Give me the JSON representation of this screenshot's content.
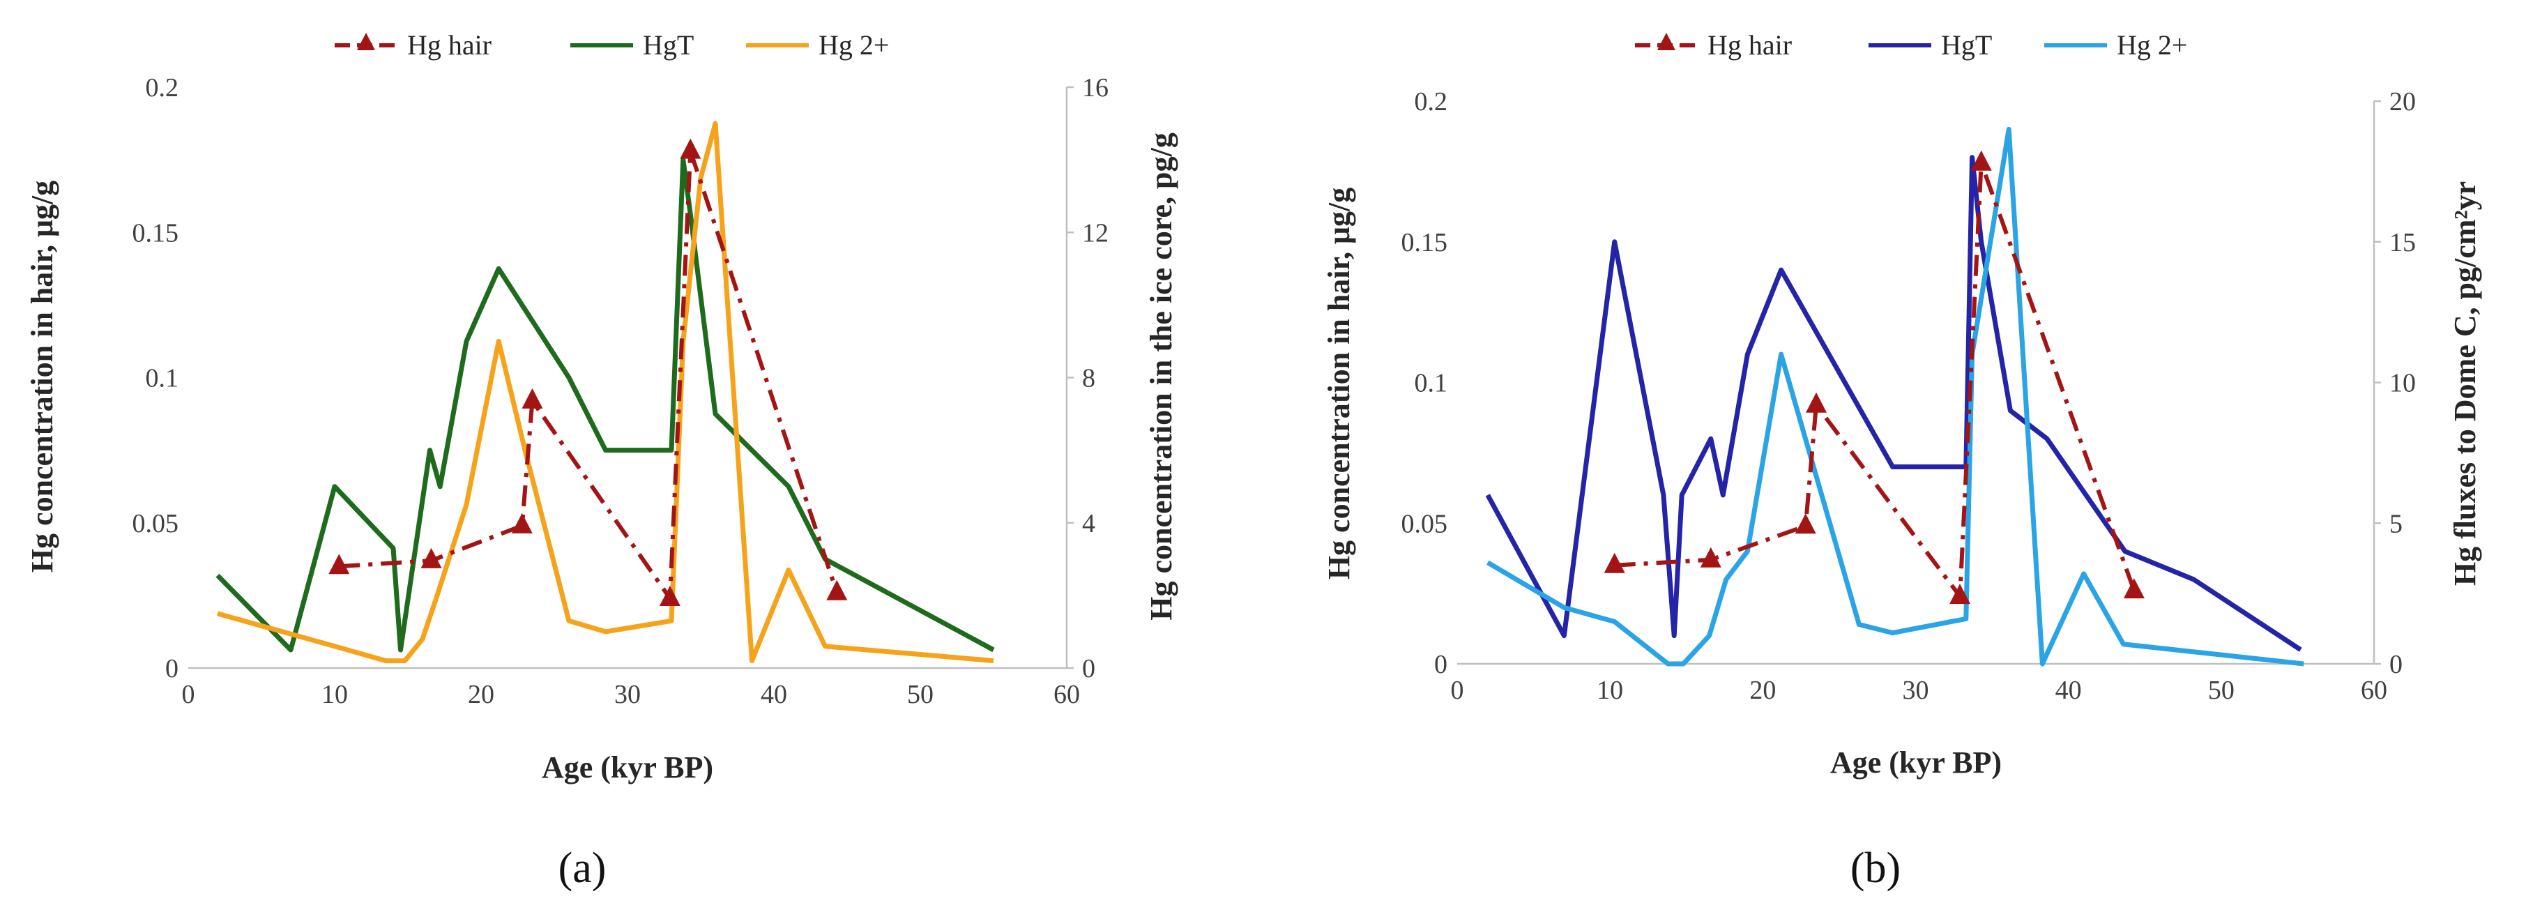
{
  "chart_data": [
    {
      "type": "line",
      "panel_label": "(a)",
      "xlabel": "Age (kyr BP)",
      "ylabel": "Hg concentration in hair, μg/g",
      "y2label": "Hg concentration in the ice core, pg/g",
      "xlim": [
        0,
        60
      ],
      "ylim": [
        0,
        0.2
      ],
      "y2lim": [
        0,
        16
      ],
      "xticks": [
        "0",
        "10",
        "20",
        "30",
        "40",
        "50",
        "60"
      ],
      "yticks": [
        "0",
        "0.05",
        "0.1",
        "0.15",
        "0.2"
      ],
      "y2ticks": [
        "0",
        "4",
        "8",
        "12",
        "16"
      ],
      "legend_position": "top",
      "series": [
        {
          "name": "Hg hair",
          "axis": "left",
          "color": "#a31515",
          "style": "dash-dot",
          "marker": "triangle",
          "x": [
            10.3,
            16.6,
            22.8,
            23.5,
            32.9,
            34.3,
            44.3
          ],
          "y": [
            0.035,
            0.037,
            0.049,
            0.092,
            0.024,
            0.178,
            0.026
          ]
        },
        {
          "name": "HgT",
          "axis": "right",
          "color": "#1e6b1e",
          "style": "solid",
          "x": [
            2,
            7,
            10,
            14,
            14.5,
            16.5,
            17.2,
            19,
            21.2,
            26,
            28.5,
            33,
            33.8,
            34.3,
            36,
            41,
            43.5,
            55
          ],
          "y": [
            2.55,
            0.5,
            5,
            3.3,
            0.5,
            6,
            5,
            9,
            11,
            8,
            6,
            6,
            14,
            12.5,
            7,
            5,
            3,
            0.5
          ]
        },
        {
          "name": "Hg 2+",
          "axis": "right",
          "color": "#f5a31a",
          "style": "solid",
          "x": [
            2,
            10,
            13.5,
            14.8,
            16,
            17,
            19,
            21.2,
            23,
            26,
            28.5,
            33,
            33.8,
            35,
            36,
            38.5,
            41,
            43.5,
            55
          ],
          "y": [
            1.5,
            0.6,
            0.2,
            0.2,
            0.8,
            2,
            4.5,
            9,
            6,
            1.3,
            1,
            1.3,
            9,
            13.5,
            15,
            0.2,
            2.7,
            0.6,
            0.2
          ]
        }
      ]
    },
    {
      "type": "line",
      "panel_label": "(b)",
      "xlabel": "Age (kyr BP)",
      "ylabel": "Hg concentration in hair, μg/g",
      "y2label": "Hg fluxes to Dome C, pg/cm²yr",
      "xlim": [
        0,
        60
      ],
      "ylim": [
        0,
        0.2
      ],
      "y2lim": [
        0,
        20
      ],
      "xticks": [
        "0",
        "10",
        "20",
        "30",
        "40",
        "50",
        "60"
      ],
      "yticks": [
        "0",
        "0.05",
        "0.1",
        "0.15",
        "0.2"
      ],
      "y2ticks": [
        "0",
        "5",
        "10",
        "15",
        "20"
      ],
      "legend_position": "top",
      "series": [
        {
          "name": "Hg hair",
          "axis": "left",
          "color": "#a31515",
          "style": "dash-dot",
          "marker": "triangle",
          "x": [
            10.3,
            16.6,
            22.8,
            23.5,
            32.9,
            34.3,
            44.3
          ],
          "y": [
            0.035,
            0.037,
            0.049,
            0.092,
            0.024,
            0.178,
            0.026
          ]
        },
        {
          "name": "HgT",
          "axis": "right",
          "color": "#2424a8",
          "style": "solid",
          "x": [
            2,
            7,
            10.3,
            13.5,
            14.2,
            14.7,
            16.6,
            17.4,
            19,
            21.2,
            28.5,
            33.3,
            33.7,
            34.3,
            36.2,
            38.6,
            43.7,
            48.2,
            55.2
          ],
          "y": [
            6,
            1,
            15,
            6,
            1,
            6,
            8,
            6,
            11,
            14,
            7,
            7,
            18,
            15,
            9,
            8,
            4,
            3,
            0.5
          ]
        },
        {
          "name": "Hg 2+",
          "axis": "right",
          "color": "#2aa4e4",
          "style": "solid",
          "x": [
            2,
            7,
            10.3,
            13.8,
            14.8,
            16.5,
            17.6,
            19,
            21.2,
            26.3,
            28.5,
            33.3,
            33.7,
            36.1,
            38.3,
            41,
            43.6,
            55.4
          ],
          "y": [
            3.6,
            2,
            1.5,
            0,
            0,
            1,
            3,
            4,
            11,
            1.4,
            1.1,
            1.6,
            11,
            19,
            0,
            3.2,
            0.7,
            0
          ]
        }
      ]
    }
  ]
}
